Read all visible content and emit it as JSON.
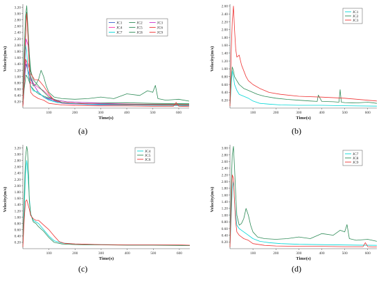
{
  "panel_labels": [
    "(a)",
    "(b)",
    "(c)",
    "(d)"
  ],
  "chart_data": [
    {
      "type": "line",
      "panel": "(a)",
      "xlabel": "Time(s)",
      "ylabel": "Velocity(m/s)",
      "xlim": [
        0,
        640
      ],
      "ylim": [
        0,
        3.3
      ],
      "xticks": [
        "100",
        "200",
        "300",
        "400",
        "500",
        "600"
      ],
      "yticks": [
        "0.20",
        "0.40",
        "0.60",
        "0.80",
        "1.00",
        "1.20",
        "1.40",
        "1.60",
        "1.80",
        "2.00",
        "2.20",
        "2.40",
        "2.60",
        "2.80",
        "3.00",
        "3.20"
      ],
      "legend_position": "top-right",
      "legend_columns": 3,
      "series": [
        {
          "name": "JC1",
          "color": "#3a5fcd",
          "x": [
            0,
            5,
            12,
            20,
            30,
            45,
            60,
            80,
            100,
            130,
            170,
            220,
            300,
            400,
            500,
            640
          ],
          "y": [
            0.05,
            0.8,
            1.4,
            1.2,
            0.9,
            0.7,
            0.5,
            0.35,
            0.28,
            0.2,
            0.15,
            0.12,
            0.1,
            0.1,
            0.09,
            0.08
          ]
        },
        {
          "name": "JC2",
          "color": "#2e8b57",
          "x": [
            0,
            5,
            12,
            20,
            30,
            45,
            60,
            80,
            100,
            130,
            170,
            220,
            300,
            400,
            500,
            640
          ],
          "y": [
            0.05,
            0.6,
            1.05,
            0.95,
            0.7,
            0.55,
            0.45,
            0.38,
            0.32,
            0.25,
            0.2,
            0.18,
            0.16,
            0.17,
            0.15,
            0.14
          ]
        },
        {
          "name": "JC3",
          "color": "#cc33cc",
          "x": [
            0,
            5,
            12,
            20,
            30,
            45,
            60,
            80,
            100,
            130,
            170,
            220,
            300,
            400,
            500,
            640
          ],
          "y": [
            0.05,
            0.9,
            2.2,
            2.0,
            1.0,
            0.7,
            0.5,
            0.35,
            0.3,
            0.25,
            0.2,
            0.18,
            0.15,
            0.13,
            0.12,
            0.1
          ]
        },
        {
          "name": "JC4",
          "color": "#ff33aa",
          "x": [
            0,
            5,
            10,
            16,
            22,
            30,
            45,
            60,
            80,
            100,
            120,
            150,
            200,
            300,
            400,
            640
          ],
          "y": [
            0.05,
            0.8,
            1.5,
            1.35,
            1.0,
            0.8,
            0.75,
            0.65,
            0.55,
            0.4,
            0.25,
            0.15,
            0.12,
            0.12,
            0.1,
            0.1
          ]
        },
        {
          "name": "JC5",
          "color": "#2e8b57",
          "x": [
            0,
            5,
            10,
            15,
            20,
            25,
            30,
            40,
            50,
            70,
            100,
            150,
            200,
            300,
            400,
            640
          ],
          "y": [
            0.05,
            1.5,
            2.9,
            3.25,
            2.5,
            1.7,
            1.2,
            0.9,
            0.8,
            0.6,
            0.35,
            0.18,
            0.14,
            0.13,
            0.12,
            0.12
          ]
        },
        {
          "name": "JC6",
          "color": "#ee3333",
          "x": [
            0,
            5,
            10,
            20,
            30,
            45,
            60,
            80,
            100,
            120,
            150,
            200,
            300,
            400,
            640
          ],
          "y": [
            0.05,
            0.8,
            1.55,
            1.4,
            1.1,
            0.9,
            0.9,
            0.7,
            0.45,
            0.25,
            0.18,
            0.15,
            0.13,
            0.12,
            0.1
          ]
        },
        {
          "name": "JC7",
          "color": "#00d7d7",
          "x": [
            0,
            5,
            10,
            15,
            20,
            30,
            40,
            60,
            80,
            100,
            130,
            170,
            220,
            300,
            400,
            640
          ],
          "y": [
            0.05,
            1.0,
            2.0,
            1.8,
            1.1,
            0.7,
            0.55,
            0.5,
            0.35,
            0.25,
            0.18,
            0.15,
            0.13,
            0.12,
            0.1,
            0.08
          ]
        },
        {
          "name": "JC8",
          "color": "#2e8b57",
          "x": [
            0,
            5,
            10,
            15,
            20,
            25,
            30,
            40,
            50,
            60,
            70,
            80,
            90,
            100,
            120,
            150,
            200,
            250,
            300,
            350,
            400,
            450,
            480,
            500,
            510,
            520,
            550,
            600,
            640
          ],
          "y": [
            0.05,
            1.8,
            2.8,
            3.05,
            2.4,
            1.6,
            1.0,
            0.7,
            0.75,
            0.9,
            1.2,
            1.0,
            0.7,
            0.5,
            0.35,
            0.3,
            0.28,
            0.3,
            0.35,
            0.3,
            0.45,
            0.4,
            0.55,
            0.5,
            0.72,
            0.3,
            0.25,
            0.28,
            0.22
          ]
        },
        {
          "name": "JC9",
          "color": "#ee3333",
          "x": [
            0,
            5,
            10,
            15,
            20,
            25,
            30,
            40,
            50,
            60,
            80,
            100,
            150,
            200,
            300,
            400,
            500,
            580,
            590,
            600,
            640
          ],
          "y": [
            0.05,
            1.2,
            2.2,
            3.0,
            2.2,
            1.2,
            0.5,
            0.4,
            0.35,
            0.3,
            0.25,
            0.15,
            0.1,
            0.08,
            0.07,
            0.07,
            0.06,
            0.06,
            0.18,
            0.06,
            0.05
          ]
        }
      ]
    },
    {
      "type": "line",
      "panel": "(b)",
      "xlabel": "Time(s)",
      "ylabel": "Velocity(m/s)",
      "xlim": [
        0,
        640
      ],
      "ylim": [
        0,
        2.65
      ],
      "xticks": [
        "100",
        "200",
        "300",
        "400",
        "500",
        "600"
      ],
      "yticks": [
        "0.20",
        "0.40",
        "0.60",
        "0.80",
        "1.00",
        "1.20",
        "1.40",
        "1.60",
        "1.80",
        "2.00",
        "2.20",
        "2.40",
        "2.60"
      ],
      "legend_position": "top-right",
      "legend_columns": 1,
      "series": [
        {
          "name": "JC1",
          "color": "#00d7d7",
          "x": [
            0,
            5,
            10,
            15,
            20,
            30,
            40,
            60,
            80,
            100,
            130,
            170,
            220,
            300,
            400,
            500,
            640
          ],
          "y": [
            0.05,
            0.6,
            0.95,
            0.8,
            0.6,
            0.45,
            0.35,
            0.3,
            0.25,
            0.18,
            0.12,
            0.1,
            0.08,
            0.07,
            0.07,
            0.06,
            0.05
          ]
        },
        {
          "name": "JC2",
          "color": "#2e8b57",
          "x": [
            0,
            5,
            10,
            15,
            20,
            30,
            40,
            60,
            80,
            100,
            120,
            150,
            200,
            250,
            300,
            350,
            380,
            385,
            400,
            450,
            475,
            480,
            485,
            500,
            550,
            600,
            640
          ],
          "y": [
            0.05,
            0.7,
            1.05,
            0.95,
            0.8,
            0.7,
            0.6,
            0.5,
            0.45,
            0.4,
            0.35,
            0.3,
            0.25,
            0.22,
            0.2,
            0.18,
            0.17,
            0.33,
            0.17,
            0.16,
            0.15,
            0.47,
            0.15,
            0.14,
            0.13,
            0.15,
            0.12
          ]
        },
        {
          "name": "JC3",
          "color": "#ee3333",
          "x": [
            0,
            5,
            10,
            15,
            20,
            25,
            30,
            40,
            50,
            60,
            70,
            80,
            90,
            100,
            130,
            170,
            220,
            300,
            400,
            500,
            600,
            640
          ],
          "y": [
            0.05,
            1.4,
            2.2,
            2.6,
            2.0,
            1.5,
            1.3,
            1.35,
            1.1,
            0.95,
            0.8,
            0.7,
            0.65,
            0.6,
            0.5,
            0.4,
            0.35,
            0.3,
            0.28,
            0.25,
            0.2,
            0.18
          ]
        }
      ]
    },
    {
      "type": "line",
      "panel": "(c)",
      "xlabel": "Time(s)",
      "ylabel": "Velocity(m/s)",
      "xlim": [
        0,
        640
      ],
      "ylim": [
        0,
        3.3
      ],
      "xticks": [
        "100",
        "200",
        "300",
        "400",
        "500",
        "600"
      ],
      "yticks": [
        "0.20",
        "0.40",
        "0.60",
        "0.80",
        "1.00",
        "1.20",
        "1.40",
        "1.60",
        "1.80",
        "2.00",
        "2.20",
        "2.40",
        "2.60",
        "2.80",
        "3.00",
        "3.20"
      ],
      "legend_position": "top-right",
      "legend_columns": 1,
      "series": [
        {
          "name": "JC4",
          "color": "#00d7d7",
          "x": [
            0,
            5,
            10,
            15,
            20,
            25,
            30,
            40,
            50,
            60,
            80,
            100,
            120,
            150,
            200,
            250,
            300,
            400,
            500,
            640
          ],
          "y": [
            0.05,
            1.2,
            2.4,
            2.8,
            2.3,
            1.6,
            1.1,
            0.9,
            0.85,
            0.8,
            0.6,
            0.4,
            0.25,
            0.18,
            0.15,
            0.14,
            0.13,
            0.12,
            0.12,
            0.1
          ]
        },
        {
          "name": "JC5",
          "color": "#2e8b57",
          "x": [
            0,
            5,
            10,
            15,
            18,
            22,
            25,
            30,
            40,
            50,
            60,
            80,
            100,
            120,
            150,
            200,
            250,
            300,
            400,
            500,
            640
          ],
          "y": [
            0.05,
            1.6,
            2.9,
            3.25,
            3.1,
            2.3,
            1.5,
            1.1,
            0.85,
            0.8,
            0.7,
            0.55,
            0.35,
            0.2,
            0.15,
            0.13,
            0.12,
            0.12,
            0.11,
            0.11,
            0.1
          ]
        },
        {
          "name": "JC6",
          "color": "#ee3333",
          "x": [
            0,
            5,
            10,
            15,
            20,
            25,
            30,
            40,
            50,
            60,
            80,
            100,
            120,
            140,
            160,
            200,
            300,
            400,
            500,
            600,
            640
          ],
          "y": [
            0.05,
            0.9,
            1.5,
            1.55,
            1.4,
            1.25,
            1.05,
            0.95,
            0.9,
            0.9,
            0.75,
            0.6,
            0.4,
            0.22,
            0.17,
            0.15,
            0.13,
            0.12,
            0.12,
            0.12,
            0.11
          ]
        }
      ]
    },
    {
      "type": "line",
      "panel": "(d)",
      "xlabel": "Time(s)",
      "ylabel": "Velocity(m/s)",
      "xlim": [
        0,
        640
      ],
      "ylim": [
        0,
        3.1
      ],
      "xticks": [
        "100",
        "200",
        "300",
        "400",
        "500",
        "600"
      ],
      "yticks": [
        "0.20",
        "0.40",
        "0.60",
        "0.80",
        "1.00",
        "1.20",
        "1.40",
        "1.60",
        "1.80",
        "2.00",
        "2.20",
        "2.40",
        "2.60",
        "2.80",
        "3.00"
      ],
      "legend_position": "top-right",
      "legend_columns": 1,
      "series": [
        {
          "name": "JC7",
          "color": "#00d7d7",
          "x": [
            0,
            5,
            10,
            15,
            20,
            25,
            30,
            40,
            50,
            60,
            70,
            80,
            100,
            130,
            170,
            220,
            300,
            400,
            500,
            640
          ],
          "y": [
            0.05,
            0.9,
            1.8,
            2.0,
            1.4,
            1.0,
            0.7,
            0.6,
            0.55,
            0.5,
            0.45,
            0.4,
            0.3,
            0.22,
            0.18,
            0.15,
            0.13,
            0.12,
            0.11,
            0.1
          ]
        },
        {
          "name": "JC8",
          "color": "#2e8b57",
          "x": [
            0,
            5,
            10,
            15,
            20,
            25,
            30,
            40,
            50,
            60,
            70,
            80,
            90,
            100,
            120,
            150,
            200,
            250,
            300,
            350,
            400,
            450,
            480,
            500,
            510,
            520,
            550,
            600,
            640
          ],
          "y": [
            0.05,
            1.8,
            2.8,
            3.05,
            2.4,
            1.6,
            1.0,
            0.7,
            0.75,
            0.9,
            1.2,
            1.0,
            0.7,
            0.5,
            0.35,
            0.3,
            0.28,
            0.3,
            0.35,
            0.3,
            0.45,
            0.4,
            0.55,
            0.5,
            0.72,
            0.3,
            0.25,
            0.28,
            0.22
          ]
        },
        {
          "name": "JC9",
          "color": "#ee3333",
          "x": [
            0,
            5,
            10,
            15,
            20,
            25,
            30,
            40,
            50,
            60,
            80,
            100,
            150,
            200,
            300,
            400,
            500,
            580,
            590,
            600,
            640
          ],
          "y": [
            0.05,
            1.2,
            2.2,
            2.1,
            1.4,
            0.8,
            0.5,
            0.4,
            0.35,
            0.3,
            0.25,
            0.15,
            0.1,
            0.08,
            0.07,
            0.07,
            0.06,
            0.06,
            0.18,
            0.06,
            0.05
          ]
        }
      ]
    }
  ]
}
